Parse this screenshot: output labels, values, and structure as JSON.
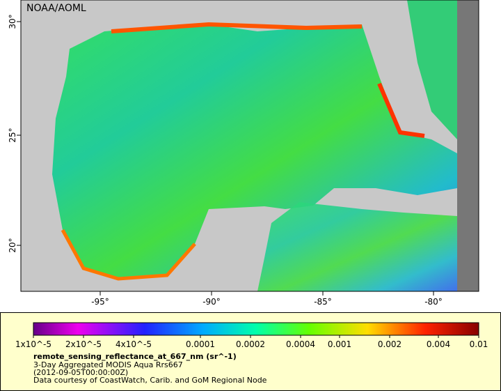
{
  "map": {
    "credit": "NOAA/AOML",
    "lat_ticks": [
      "30°",
      "25°",
      "20°"
    ],
    "lon_ticks": [
      "-95°",
      "-90°",
      "-85°",
      "-80°"
    ]
  },
  "colorbar": {
    "labels": [
      "1x10^-5",
      "2x10^-5",
      "4x10^-5",
      "0.0001",
      "0.0002",
      "0.0004",
      "0.001",
      "0.002",
      "0.004",
      "0.01"
    ]
  },
  "legend": {
    "variable": "remote_sensing_reflectance_at_667_nm (sr^-1)",
    "dataset": "3-Day Aggregated MODIS Aqua Rrs667",
    "time": "(2012-09-05T00:00:00Z)",
    "source": "Data courtesy of CoastWatch, Carib. and GoM Regional Node"
  }
}
